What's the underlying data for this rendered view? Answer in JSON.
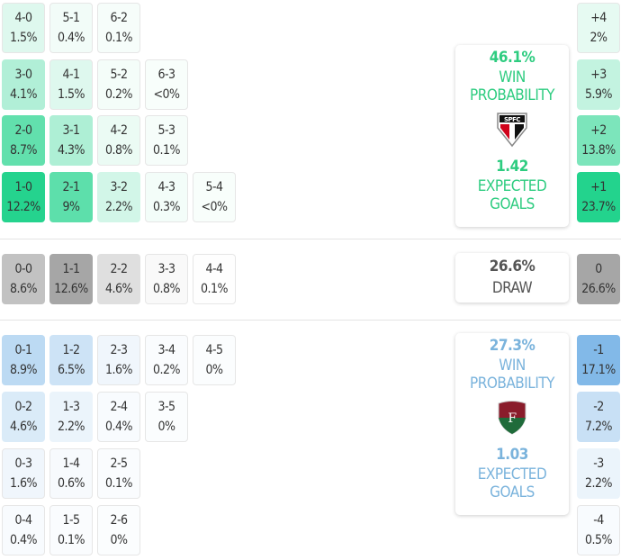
{
  "home": {
    "color": "#1ed28a",
    "text_color": "#2ecc80",
    "rows": [
      [
        [
          "4-0",
          "1.5%",
          1.5
        ],
        [
          "5-1",
          "0.4%",
          0.4
        ],
        [
          "6-2",
          "0.1%",
          0.1
        ]
      ],
      [
        [
          "3-0",
          "4.1%",
          4.1
        ],
        [
          "4-1",
          "1.5%",
          1.5
        ],
        [
          "5-2",
          "0.2%",
          0.2
        ],
        [
          "6-3",
          "<0%",
          0
        ]
      ],
      [
        [
          "2-0",
          "8.7%",
          8.7
        ],
        [
          "3-1",
          "4.3%",
          4.3
        ],
        [
          "4-2",
          "0.8%",
          0.8
        ],
        [
          "5-3",
          "0.1%",
          0.1
        ]
      ],
      [
        [
          "1-0",
          "12.2%",
          12.2
        ],
        [
          "2-1",
          "9%",
          9
        ],
        [
          "3-2",
          "2.2%",
          2.2
        ],
        [
          "4-3",
          "0.3%",
          0.3
        ],
        [
          "5-4",
          "<0%",
          0
        ]
      ]
    ],
    "margins": [
      [
        "+4",
        "2%",
        2
      ],
      [
        "+3",
        "5.9%",
        5.9
      ],
      [
        "+2",
        "13.8%",
        13.8
      ],
      [
        "+1",
        "23.7%",
        23.7
      ]
    ],
    "win_pct": "46.1%",
    "win_label": "WIN PROBABILITY",
    "xg": "1.42",
    "xg_label": "EXPECTED GOALS",
    "crest_text": "SPFC"
  },
  "draw": {
    "row": [
      [
        "0-0",
        "8.6%",
        8.6
      ],
      [
        "1-1",
        "12.6%",
        12.6
      ],
      [
        "2-2",
        "4.6%",
        4.6
      ],
      [
        "3-3",
        "0.8%",
        0.8
      ],
      [
        "4-4",
        "0.1%",
        0.1
      ]
    ],
    "margin": [
      "0",
      "26.6%",
      26.6
    ],
    "pct": "26.6%",
    "label": "DRAW"
  },
  "away": {
    "color": "#78b4e6",
    "text_color": "#7ab3dc",
    "rows": [
      [
        [
          "0-1",
          "8.9%",
          8.9
        ],
        [
          "1-2",
          "6.5%",
          6.5
        ],
        [
          "2-3",
          "1.6%",
          1.6
        ],
        [
          "3-4",
          "0.2%",
          0.2
        ],
        [
          "4-5",
          "0%",
          0
        ]
      ],
      [
        [
          "0-2",
          "4.6%",
          4.6
        ],
        [
          "1-3",
          "2.2%",
          2.2
        ],
        [
          "2-4",
          "0.4%",
          0.4
        ],
        [
          "3-5",
          "0%",
          0
        ]
      ],
      [
        [
          "0-3",
          "1.6%",
          1.6
        ],
        [
          "1-4",
          "0.6%",
          0.6
        ],
        [
          "2-5",
          "0.1%",
          0.1
        ]
      ],
      [
        [
          "0-4",
          "0.4%",
          0.4
        ],
        [
          "1-5",
          "0.1%",
          0.1
        ],
        [
          "2-6",
          "0%",
          0
        ]
      ]
    ],
    "margins": [
      [
        "-1",
        "17.1%",
        17.1
      ],
      [
        "-2",
        "7.2%",
        7.2
      ],
      [
        "-3",
        "2.2%",
        2.2
      ],
      [
        "-4",
        "0.5%",
        0.5
      ]
    ],
    "win_pct": "27.3%",
    "win_label": "WIN PROBABILITY",
    "xg": "1.03",
    "xg_label": "EXPECTED GOALS"
  }
}
